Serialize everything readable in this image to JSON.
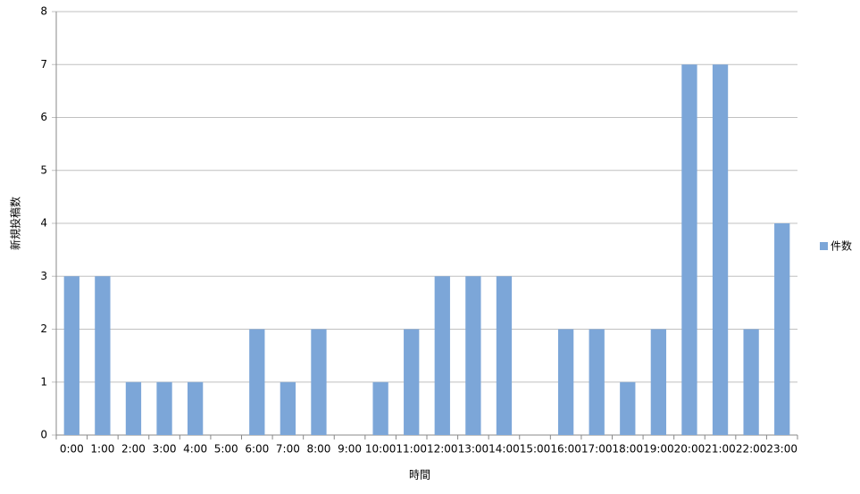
{
  "chart_data": {
    "type": "bar",
    "x_label": "時間",
    "y_label": "新規投稿数",
    "categories": [
      "0:00",
      "1:00",
      "2:00",
      "3:00",
      "4:00",
      "5:00",
      "6:00",
      "7:00",
      "8:00",
      "9:00",
      "10:00",
      "11:00",
      "12:00",
      "13:00",
      "14:00",
      "15:00",
      "16:00",
      "17:00",
      "18:00",
      "19:00",
      "20:00",
      "21:00",
      "22:00",
      "23:00"
    ],
    "series": [
      {
        "name": "件数",
        "color": "#7ca6d8",
        "values": [
          3,
          3,
          1,
          1,
          1,
          0,
          2,
          1,
          2,
          0,
          1,
          2,
          3,
          3,
          3,
          0,
          2,
          2,
          1,
          2,
          7,
          7,
          2,
          4
        ]
      }
    ],
    "ylim": [
      0,
      8
    ],
    "yticks": [
      0,
      1,
      2,
      3,
      4,
      5,
      6,
      7,
      8
    ],
    "grid": true,
    "legend": "right"
  }
}
